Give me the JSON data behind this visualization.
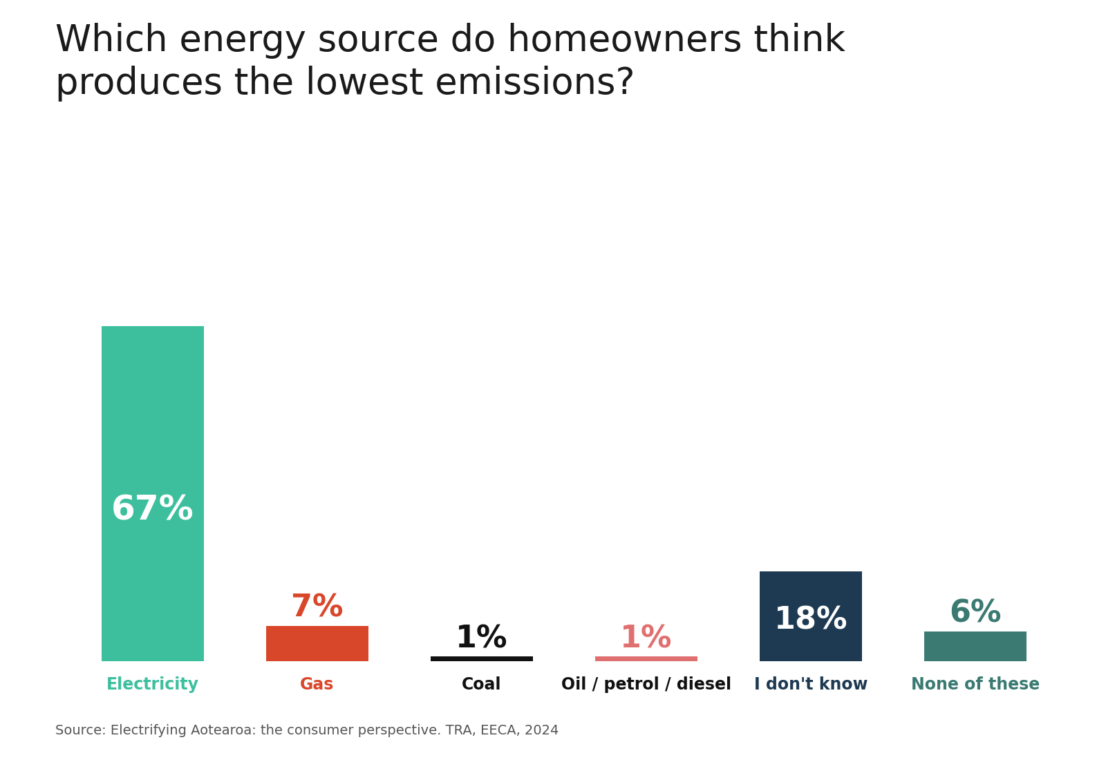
{
  "title": "Which energy source do homeowners think\nproduces the lowest emissions?",
  "categories": [
    "Electricity",
    "Gas",
    "Coal",
    "Oil / petrol / diesel",
    "I don't know",
    "None of these"
  ],
  "values": [
    67,
    7,
    1,
    1,
    18,
    6
  ],
  "bar_colors": [
    "#3dbf9e",
    "#d9472b",
    "#111111",
    "#e07070",
    "#1e3a52",
    "#3a7a72"
  ],
  "label_colors": [
    "#ffffff",
    "#d9472b",
    "#111111",
    "#e07070",
    "#ffffff",
    "#3a7a72"
  ],
  "label_inside": [
    true,
    false,
    false,
    false,
    true,
    false
  ],
  "labels": [
    "67%",
    "7%",
    "1%",
    "1%",
    "18%",
    "6%"
  ],
  "xlabel_colors": [
    "#3dbf9e",
    "#d9472b",
    "#111111",
    "#111111",
    "#1e3a52",
    "#3a7a72"
  ],
  "source_text": "Source: Electrifying Aotearoa: the consumer perspective. TRA, EECA, 2024",
  "background_color": "#ffffff",
  "title_fontsize": 38,
  "label_fontsize": 32,
  "xlabel_fontsize": 17,
  "source_fontsize": 14
}
